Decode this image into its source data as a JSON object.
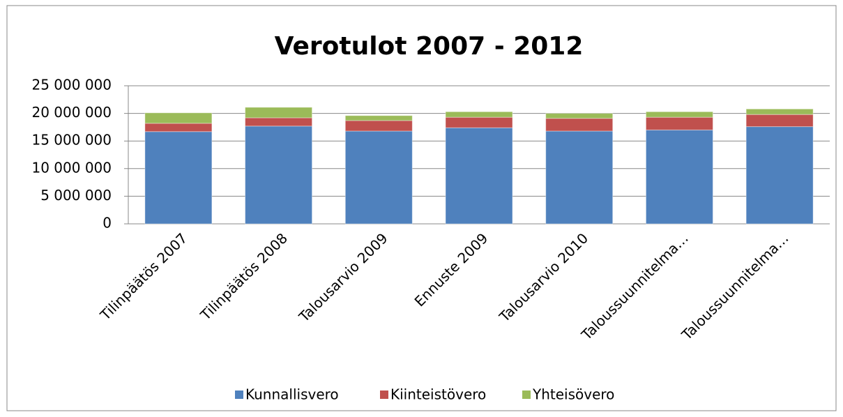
{
  "chart_data": {
    "type": "stacked_bar",
    "title": "Verotulot 2007 - 2012",
    "categories": [
      "Tilinpäätös 2007",
      "Tilinpäätös 2008",
      "Talousarvio 2009",
      "Ennuste 2009",
      "Talousarvio 2010",
      "Taloussuunnitelma…",
      "Taloussuunnitelma…"
    ],
    "series": [
      {
        "name": "Kunnallisvero",
        "color": "#4f81bd",
        "values": [
          16700000,
          17700000,
          16800000,
          17400000,
          16800000,
          17000000,
          17600000
        ]
      },
      {
        "name": "Kiinteistövero",
        "color": "#c0504d",
        "values": [
          1500000,
          1500000,
          1900000,
          1900000,
          2300000,
          2300000,
          2200000
        ]
      },
      {
        "name": "Yhteisövero",
        "color": "#9bbb59",
        "values": [
          1900000,
          1900000,
          900000,
          1000000,
          900000,
          1000000,
          1000000
        ]
      }
    ],
    "ylim": [
      0,
      25000000
    ],
    "yticks": [
      0,
      {
        "value": 5000000,
        "label": "5 000 000"
      },
      {
        "value": 10000000,
        "label": "10 000 000"
      },
      {
        "value": 15000000,
        "label": "15 000 000"
      },
      {
        "value": 20000000,
        "label": "20 000 000"
      },
      {
        "value": 25000000,
        "label": "25 000 000"
      }
    ],
    "grid": true,
    "legend": "bottom"
  }
}
